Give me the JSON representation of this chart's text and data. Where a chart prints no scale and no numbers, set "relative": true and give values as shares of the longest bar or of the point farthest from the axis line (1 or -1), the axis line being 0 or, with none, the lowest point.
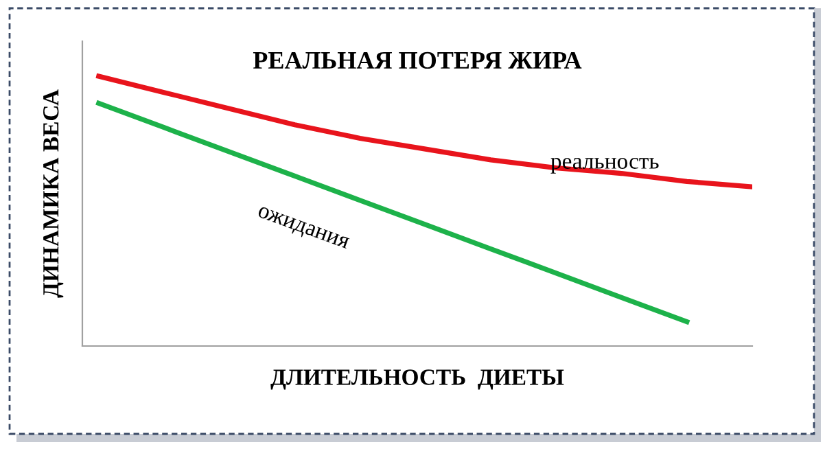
{
  "chart_data": {
    "type": "line",
    "title": "РЕАЛЬНАЯ ПОТЕРЯ ЖИРА",
    "xlabel": "ДЛИТЕЛЬНОСТЬ  ДИЕТЫ",
    "ylabel": "ДИНАМИКА ВЕСА",
    "relative": true,
    "categories": [
      null,
      null,
      null,
      null,
      null,
      null,
      null,
      null,
      null,
      null,
      null
    ],
    "series": [
      {
        "color": "#e8141c",
        "values": [
          1.0,
          0.94,
          0.88,
          0.82,
          0.77,
          0.73,
          0.69,
          0.66,
          0.64,
          0.61,
          0.59
        ]
      },
      {
        "color": "#1db24a",
        "values": [
          0.9,
          0.81,
          0.72,
          0.63,
          0.54,
          0.45,
          0.36,
          0.27,
          0.18,
          0.09,
          null
        ]
      }
    ],
    "annotations": [
      "реальность",
      "ожидания"
    ],
    "legend": false,
    "marker": "none",
    "line_style": "solid"
  }
}
